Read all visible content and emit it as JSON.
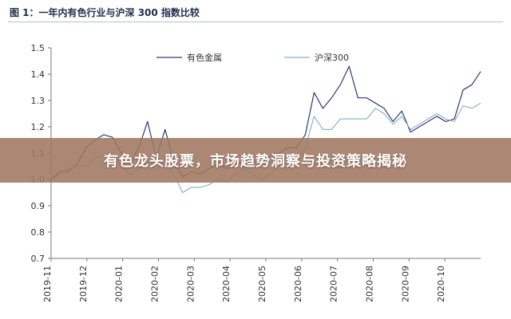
{
  "figure_title": "图 1：一年内有色行业与沪深 300 指数比较",
  "banner": {
    "text": "有色龙头股票，市场趋势洞察与投资策略揭秘"
  },
  "colors": {
    "series1": "#2b3a78",
    "series2": "#7fb0c7",
    "axis": "#7a7a7a"
  },
  "chart_data": {
    "type": "line",
    "title": "",
    "xlabel": "",
    "ylabel": "",
    "ylim": [
      0.7,
      1.5
    ],
    "yticks": [
      0.7,
      0.8,
      0.9,
      1.0,
      1.1,
      1.2,
      1.3,
      1.4,
      1.5
    ],
    "ytick_labels": [
      "0.7",
      "0.8",
      "0.9",
      "1.0",
      "1.1",
      "1.2",
      "1.3",
      "1.4",
      "1.5"
    ],
    "xticks": [
      "2019-11",
      "2019-12",
      "2020-01",
      "2020-02",
      "2020-03",
      "2020-04",
      "2020-05",
      "2020-06",
      "2020-07",
      "2020-08",
      "2020-09",
      "2020-10"
    ],
    "grid": false,
    "legend_position": "top-center",
    "series": [
      {
        "name": "有色金属",
        "values": [
          1.0,
          1.03,
          1.03,
          1.06,
          1.12,
          1.15,
          1.17,
          1.16,
          1.1,
          1.06,
          1.12,
          1.22,
          1.08,
          1.19,
          1.07,
          1.01,
          1.03,
          1.02,
          1.04,
          1.06,
          1.04,
          1.06,
          1.06,
          1.07,
          1.06,
          1.09,
          1.1,
          1.12,
          1.12,
          1.17,
          1.33,
          1.27,
          1.31,
          1.36,
          1.43,
          1.31,
          1.31,
          1.29,
          1.27,
          1.22,
          1.26,
          1.18,
          1.2,
          1.22,
          1.24,
          1.22,
          1.23,
          1.34,
          1.36,
          1.41
        ]
      },
      {
        "name": "沪深300",
        "values": [
          1.0,
          1.02,
          1.04,
          1.05,
          1.05,
          1.08,
          1.09,
          1.1,
          1.05,
          1.02,
          1.04,
          1.07,
          1.03,
          1.08,
          1.02,
          0.95,
          0.97,
          0.97,
          0.98,
          1.0,
          0.99,
          1.02,
          1.04,
          1.02,
          1.0,
          1.02,
          1.05,
          1.05,
          1.07,
          1.12,
          1.24,
          1.19,
          1.19,
          1.23,
          1.23,
          1.23,
          1.23,
          1.27,
          1.25,
          1.21,
          1.24,
          1.19,
          1.21,
          1.23,
          1.25,
          1.23,
          1.22,
          1.28,
          1.27,
          1.29
        ]
      }
    ]
  }
}
